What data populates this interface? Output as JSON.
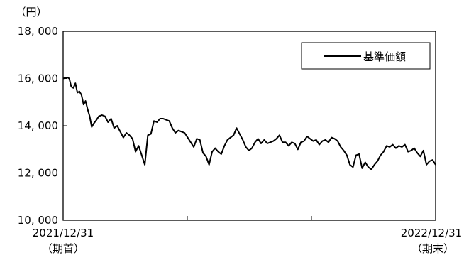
{
  "chart_data": {
    "type": "line",
    "unit_label": "（円）",
    "y_tick_labels": [
      "18, 000",
      "16, 000",
      "14, 000",
      "12, 000",
      "10, 000"
    ],
    "y_ticks": [
      18000,
      16000,
      14000,
      12000,
      10000
    ],
    "ylim": [
      10000,
      18000
    ],
    "x_start_label": "2021/12/31",
    "x_start_sub": "（期首）",
    "x_end_label": "2022/12/31",
    "x_end_sub": "（期末）",
    "xlim": [
      "2021-12-31",
      "2022-12-31"
    ],
    "grid": false,
    "legend_position": "top-right",
    "series": [
      {
        "name": "基準価額",
        "color": "#000000",
        "x": [
          "2021-12-31",
          "2022-01-04",
          "2022-01-06",
          "2022-01-08",
          "2022-01-10",
          "2022-01-12",
          "2022-01-14",
          "2022-01-16",
          "2022-01-18",
          "2022-01-20",
          "2022-01-22",
          "2022-01-24",
          "2022-01-26",
          "2022-01-28",
          "2022-01-30",
          "2022-02-01",
          "2022-02-04",
          "2022-02-07",
          "2022-02-10",
          "2022-02-13",
          "2022-02-16",
          "2022-02-19",
          "2022-02-22",
          "2022-02-25",
          "2022-02-28",
          "2022-03-03",
          "2022-03-06",
          "2022-03-09",
          "2022-03-12",
          "2022-03-15",
          "2022-03-18",
          "2022-03-21",
          "2022-03-24",
          "2022-03-27",
          "2022-03-30",
          "2022-04-02",
          "2022-04-05",
          "2022-04-08",
          "2022-04-11",
          "2022-04-14",
          "2022-04-17",
          "2022-04-20",
          "2022-04-23",
          "2022-04-26",
          "2022-04-29",
          "2022-05-02",
          "2022-05-05",
          "2022-05-08",
          "2022-05-11",
          "2022-05-14",
          "2022-05-17",
          "2022-05-20",
          "2022-05-23",
          "2022-05-26",
          "2022-05-29",
          "2022-06-01",
          "2022-06-04",
          "2022-06-07",
          "2022-06-10",
          "2022-06-13",
          "2022-06-16",
          "2022-06-19",
          "2022-06-22",
          "2022-06-25",
          "2022-06-28",
          "2022-07-01",
          "2022-07-04",
          "2022-07-07",
          "2022-07-10",
          "2022-07-13",
          "2022-07-16",
          "2022-07-19",
          "2022-07-22",
          "2022-07-25",
          "2022-07-28",
          "2022-07-31",
          "2022-08-03",
          "2022-08-06",
          "2022-08-09",
          "2022-08-12",
          "2022-08-15",
          "2022-08-18",
          "2022-08-21",
          "2022-08-24",
          "2022-08-27",
          "2022-08-30",
          "2022-09-02",
          "2022-09-05",
          "2022-09-08",
          "2022-09-11",
          "2022-09-14",
          "2022-09-17",
          "2022-09-20",
          "2022-09-23",
          "2022-09-26",
          "2022-09-29",
          "2022-10-02",
          "2022-10-05",
          "2022-10-08",
          "2022-10-11",
          "2022-10-14",
          "2022-10-17",
          "2022-10-20",
          "2022-10-23",
          "2022-10-26",
          "2022-10-29",
          "2022-11-01",
          "2022-11-04",
          "2022-11-07",
          "2022-11-10",
          "2022-11-13",
          "2022-11-16",
          "2022-11-19",
          "2022-11-22",
          "2022-11-25",
          "2022-11-28",
          "2022-12-01",
          "2022-12-04",
          "2022-12-07",
          "2022-12-10",
          "2022-12-13",
          "2022-12-16",
          "2022-12-19",
          "2022-12-22",
          "2022-12-25",
          "2022-12-28",
          "2022-12-31"
        ],
        "values": [
          16000,
          16050,
          16000,
          15650,
          15600,
          15800,
          15400,
          15450,
          15300,
          14900,
          15050,
          14700,
          14400,
          13950,
          14100,
          14200,
          14400,
          14450,
          14400,
          14150,
          14300,
          13900,
          14000,
          13750,
          13500,
          13700,
          13600,
          13450,
          12900,
          13150,
          12750,
          12350,
          13600,
          13650,
          14200,
          14150,
          14300,
          14300,
          14250,
          14200,
          13900,
          13700,
          13800,
          13750,
          13700,
          13500,
          13300,
          13100,
          13450,
          13400,
          12850,
          12700,
          12350,
          12900,
          13050,
          12900,
          12800,
          13150,
          13400,
          13500,
          13600,
          13900,
          13650,
          13400,
          13100,
          12950,
          13050,
          13300,
          13450,
          13250,
          13400,
          13250,
          13300,
          13350,
          13450,
          13600,
          13300,
          13300,
          13150,
          13300,
          13250,
          13000,
          13300,
          13350,
          13550,
          13450,
          13350,
          13400,
          13200,
          13350,
          13400,
          13300,
          13500,
          13450,
          13350,
          13100,
          12950,
          12750,
          12350,
          12250,
          12750,
          12800,
          12200,
          12450,
          12250,
          12150,
          12350,
          12500,
          12750,
          12900,
          13150,
          13100,
          13200,
          13050,
          13150,
          13100,
          13200,
          12900,
          12950,
          13050,
          12850,
          12700,
          12950,
          12350,
          12500,
          12550,
          12350
        ]
      }
    ]
  }
}
